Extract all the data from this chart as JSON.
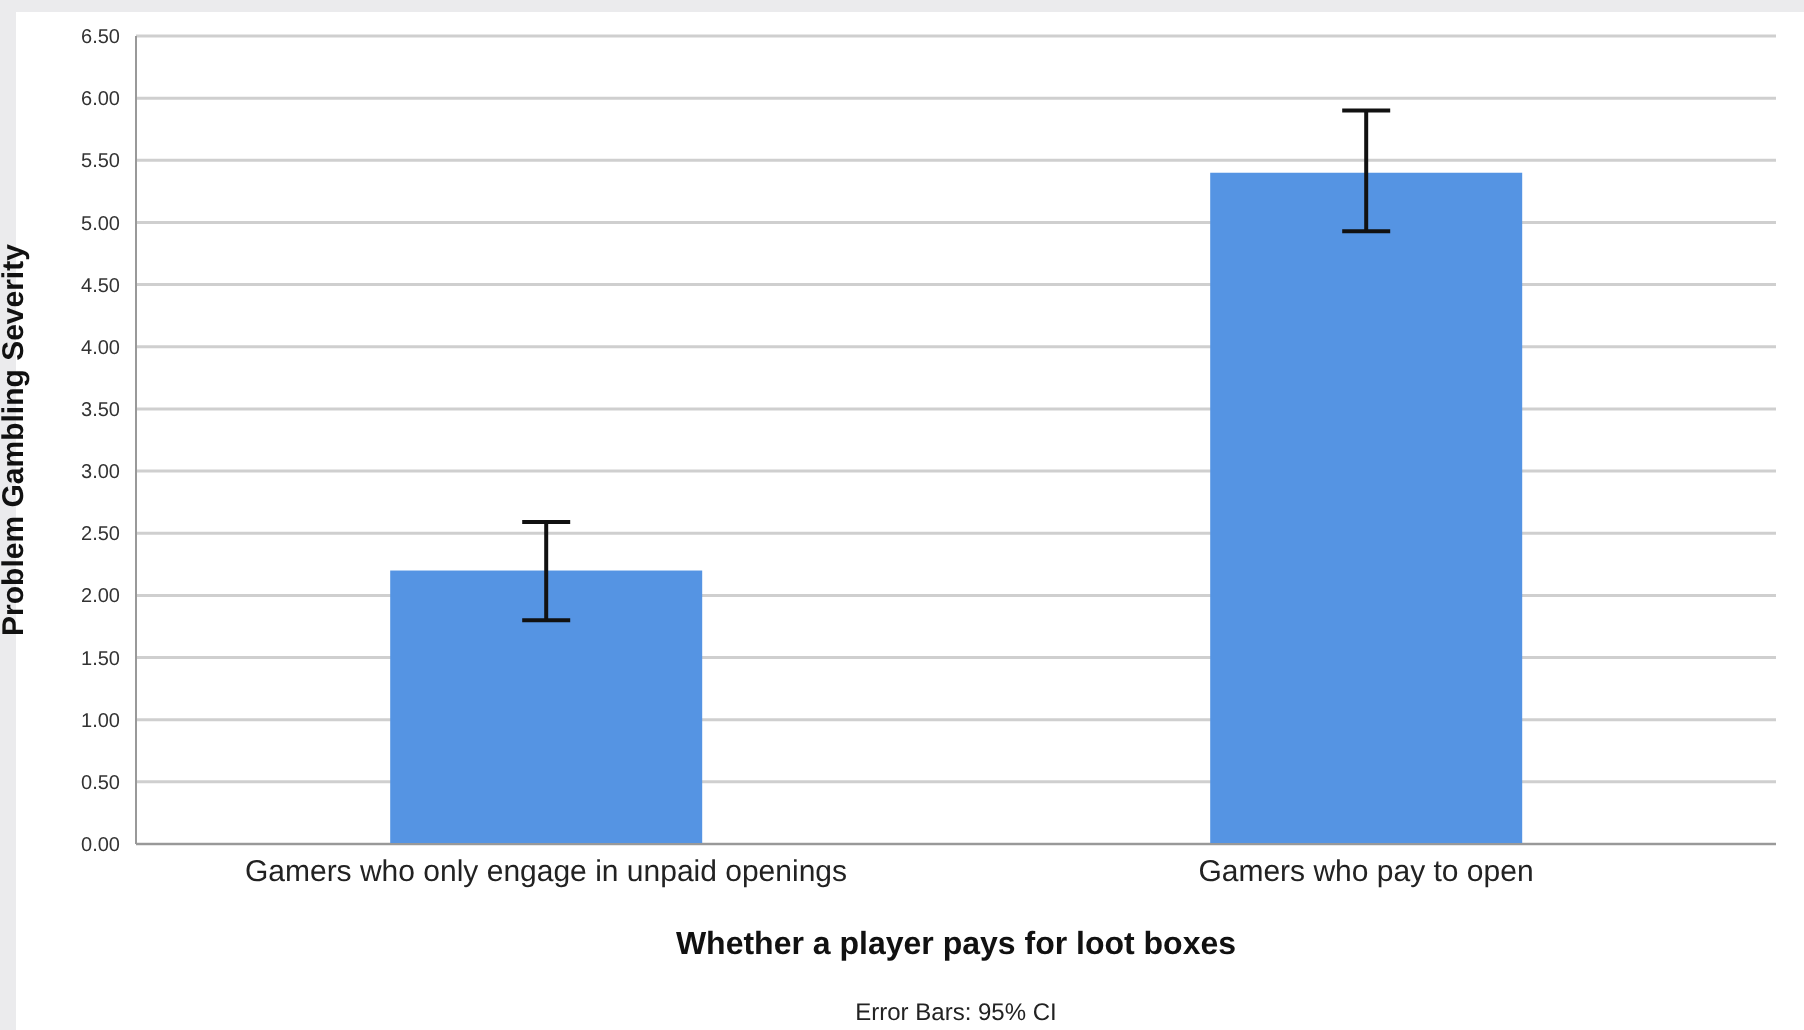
{
  "chart_data": {
    "type": "bar",
    "ylabel": "Problem Gambling Severity",
    "xlabel": "Whether a player pays for loot boxes",
    "annotations": [
      "Error Bars: 95% CI"
    ],
    "categories": [
      "Gamers who only engage in unpaid openings",
      "Gamers who pay to open"
    ],
    "values": [
      2.2,
      5.4
    ],
    "errors": [
      [
        1.8,
        2.59
      ],
      [
        4.93,
        5.9
      ]
    ],
    "color": "#5594e3",
    "ylim": [
      0,
      6.5
    ],
    "yticks": [
      {
        "value": 0,
        "label": "0.00"
      },
      {
        "value": 0.5,
        "label": "0.50"
      },
      {
        "value": 1,
        "label": "1.00"
      },
      {
        "value": 1.5,
        "label": "1.50"
      },
      {
        "value": 2,
        "label": "2.00"
      },
      {
        "value": 2.5,
        "label": "2.50"
      },
      {
        "value": 3,
        "label": "3.00"
      },
      {
        "value": 3.5,
        "label": "3.50"
      },
      {
        "value": 4,
        "label": "4.00"
      },
      {
        "value": 4.5,
        "label": "4.50"
      },
      {
        "value": 5,
        "label": "5.00"
      },
      {
        "value": 5.5,
        "label": "5.50"
      },
      {
        "value": 6,
        "label": "6.00"
      },
      {
        "value": 6.5,
        "label": "6.50"
      }
    ],
    "grid": "y"
  }
}
